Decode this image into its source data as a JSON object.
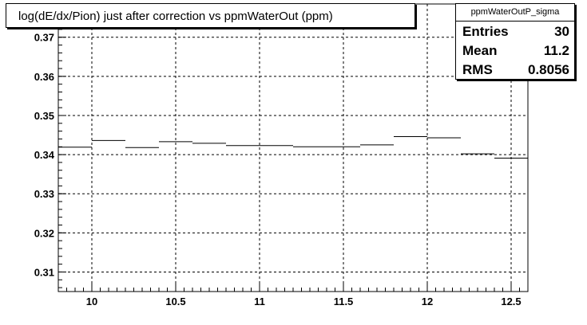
{
  "title": "log(dE/dx/Pion) just after correction vs ppmWaterOut (ppm)",
  "stats": {
    "name": "ppmWaterOutP_sigma",
    "rows": [
      {
        "label": "Entries",
        "value": "30"
      },
      {
        "label": "Mean",
        "value": "11.2"
      },
      {
        "label": "RMS",
        "value": "0.8056"
      }
    ]
  },
  "chart_data": {
    "type": "line",
    "title": "log(dE/dx/Pion) just after correction vs ppmWaterOut (ppm)",
    "xlabel": "",
    "ylabel": "",
    "xlim": [
      9.8,
      12.6
    ],
    "ylim": [
      0.305,
      0.3785
    ],
    "grid": true,
    "x_ticks": [
      10,
      10.5,
      11,
      11.5,
      12,
      12.5
    ],
    "x_tick_labels": [
      "10",
      "10.5",
      "11",
      "11.5",
      "12",
      "12.5"
    ],
    "y_ticks": [
      0.31,
      0.32,
      0.33,
      0.34,
      0.35,
      0.36,
      0.37
    ],
    "y_tick_labels": [
      "0.31",
      "0.32",
      "0.33",
      "0.34",
      "0.35",
      "0.36",
      "0.37"
    ],
    "bin_width": 0.2,
    "bins": [
      {
        "x": 9.8,
        "y": 0.3419
      },
      {
        "x": 10.0,
        "y": 0.3436
      },
      {
        "x": 10.2,
        "y": 0.3418
      },
      {
        "x": 10.4,
        "y": 0.3433
      },
      {
        "x": 10.6,
        "y": 0.3429
      },
      {
        "x": 10.8,
        "y": 0.3423
      },
      {
        "x": 11.0,
        "y": 0.3423
      },
      {
        "x": 11.2,
        "y": 0.342
      },
      {
        "x": 11.4,
        "y": 0.342
      },
      {
        "x": 11.6,
        "y": 0.3425
      },
      {
        "x": 11.8,
        "y": 0.3446
      },
      {
        "x": 12.0,
        "y": 0.3443
      },
      {
        "x": 12.2,
        "y": 0.3402
      },
      {
        "x": 12.4,
        "y": 0.3391
      }
    ]
  }
}
